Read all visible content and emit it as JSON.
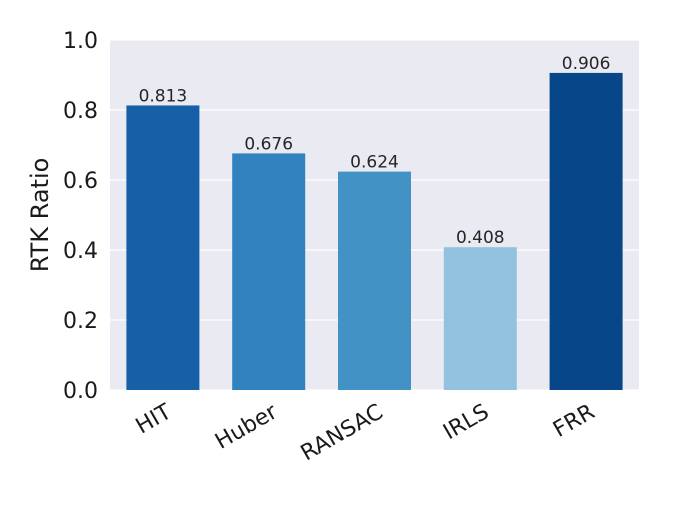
{
  "chart_data": {
    "type": "bar",
    "title": "",
    "xlabel": "",
    "ylabel": "RTK Ratio",
    "ylim": [
      0,
      1.0
    ],
    "yticks": [
      0.0,
      0.2,
      0.4,
      0.6,
      0.8,
      1.0
    ],
    "ytick_labels": [
      "0.0",
      "0.2",
      "0.4",
      "0.6",
      "0.8",
      "1.0"
    ],
    "categories": [
      "HIT",
      "Huber",
      "RANSAC",
      "IRLS",
      "FRR"
    ],
    "values": [
      0.813,
      0.676,
      0.624,
      0.408,
      0.906
    ],
    "value_labels": [
      "0.813",
      "0.676",
      "0.624",
      "0.408",
      "0.906"
    ],
    "bar_colors": [
      "#1660a8",
      "#3282c0",
      "#4292c6",
      "#92c2df",
      "#08468a"
    ],
    "background_color": "#eaeaf2",
    "grid": true,
    "grid_color": "#ffffff",
    "xtick_rotation_deg": -30
  }
}
